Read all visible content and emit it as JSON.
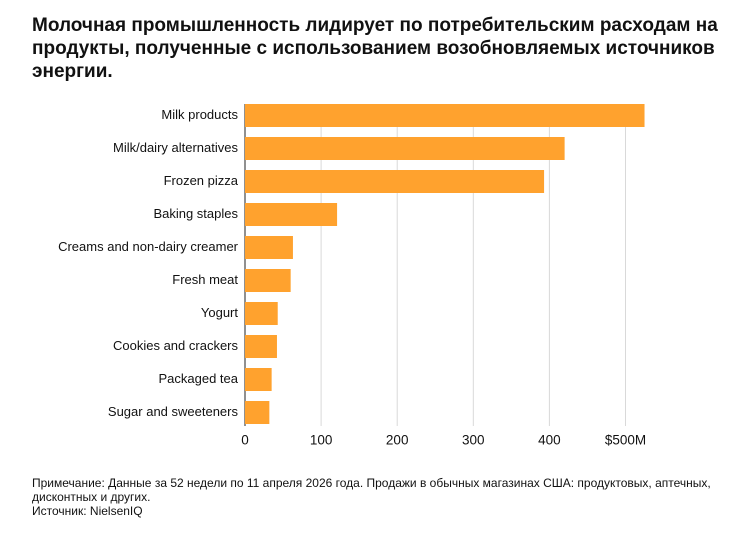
{
  "title": "Молочная промышленность лидирует по потребительским расходам на продукты, полученные с использованием возобновляемых источников энергии.",
  "chart_data": {
    "type": "bar",
    "orientation": "horizontal",
    "categories": [
      "Milk products",
      "Milk/dairy alternatives",
      "Frozen pizza",
      "Baking staples",
      "Creams and non-dairy creamer",
      "Fresh meat",
      "Yogurt",
      "Cookies and crackers",
      "Packaged tea",
      "Sugar and sweeteners"
    ],
    "values": [
      525,
      420,
      393,
      121,
      63,
      60,
      43,
      42,
      35,
      32
    ],
    "xlim": [
      0,
      500
    ],
    "xticks": [
      0,
      100,
      200,
      300,
      400,
      500
    ],
    "xtick_labels": [
      "0",
      "100",
      "200",
      "300",
      "400",
      "$500M"
    ],
    "grid": "vertical",
    "bar_color": "#FFA22E",
    "gridline_color": "#D9D9D9"
  },
  "footer": {
    "note": "Примечание: Данные за 52 недели по 11 апреля 2026 года. Продажи в обычных магазинах США: продуктовых, аптечных, дисконтных и других.",
    "source": "Источник: NielsenIQ"
  }
}
